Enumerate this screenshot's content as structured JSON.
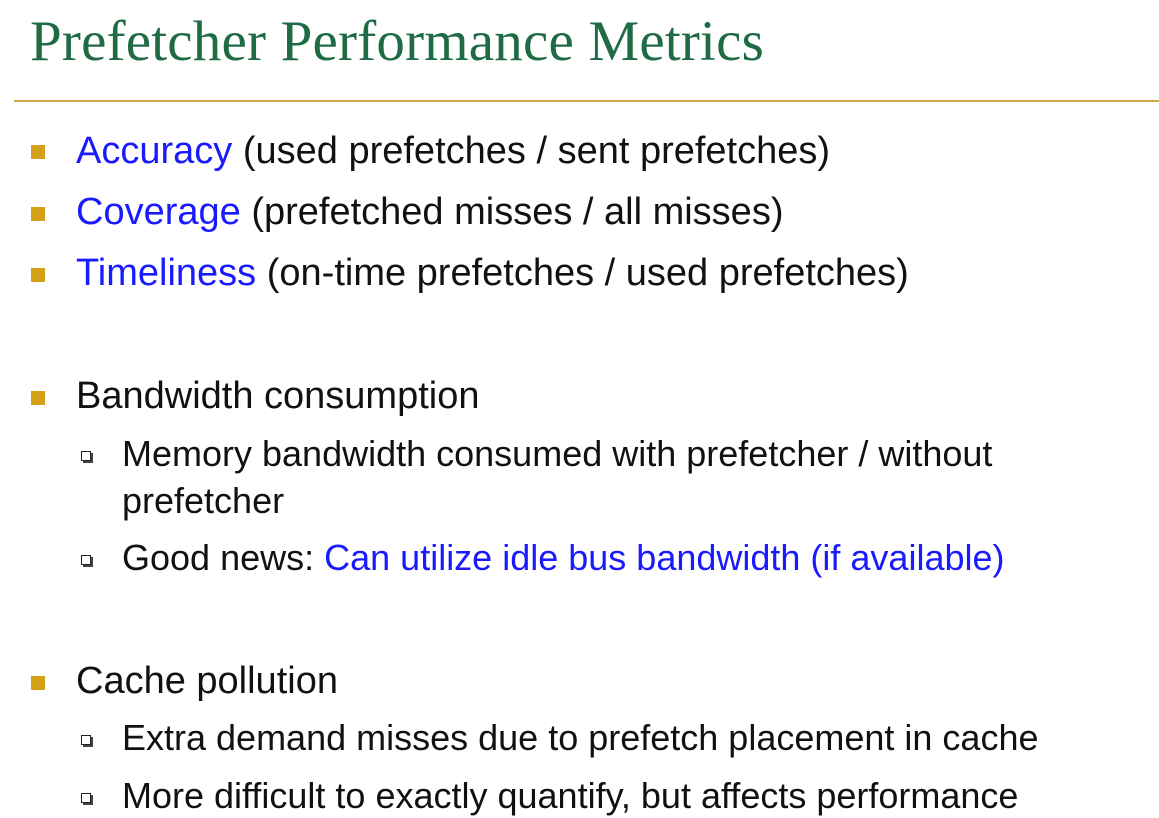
{
  "title": "Prefetcher Performance Metrics",
  "bullets": {
    "accuracy": {
      "term": "Accuracy",
      "rest": " (used prefetches / sent prefetches)"
    },
    "coverage": {
      "term": "Coverage",
      "rest": " (prefetched misses / all misses)"
    },
    "timeliness": {
      "term": "Timeliness",
      "rest": " (on-time prefetches / used prefetches)"
    },
    "bandwidth": {
      "text": "Bandwidth consumption",
      "sub1_line1": "Memory bandwidth consumed with prefetcher / without",
      "sub1_line2": "prefetcher",
      "sub2_prefix": "Good news: ",
      "sub2_highlight": "Can utilize idle bus bandwidth (if available)"
    },
    "pollution": {
      "text": "Cache pollution",
      "sub1": "Extra demand misses due to prefetch placement in cache",
      "sub2": "More difficult to exactly quantify, but affects performance"
    }
  },
  "colors": {
    "title": "#1e6b46",
    "rule": "#cfa847",
    "bullet": "#d4a017",
    "term": "#1a1aff",
    "text": "#111111"
  }
}
